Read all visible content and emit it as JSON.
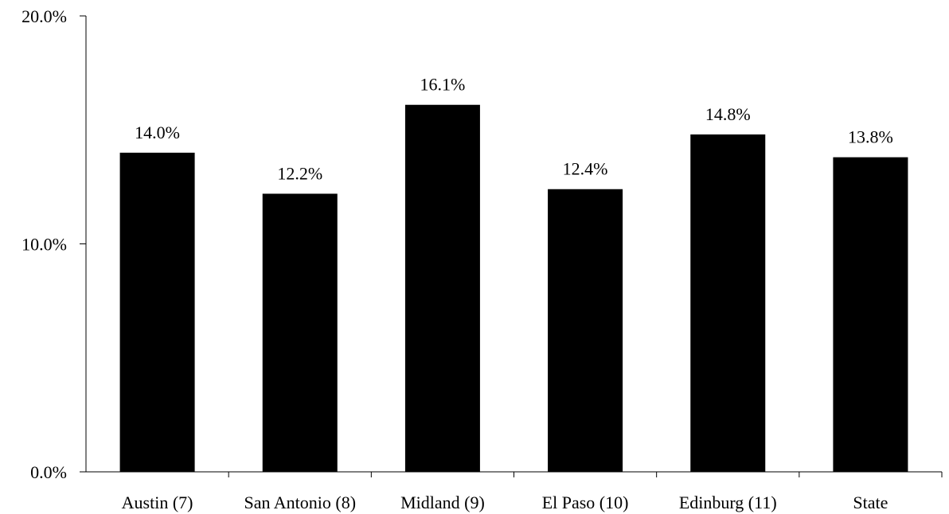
{
  "chart_data": {
    "type": "bar",
    "categories": [
      "Austin (7)",
      "San Antonio (8)",
      "Midland (9)",
      "El Paso (10)",
      "Edinburg (11)",
      "State"
    ],
    "values": [
      14.0,
      12.2,
      16.1,
      12.4,
      14.8,
      13.8
    ],
    "data_labels": [
      "14.0%",
      "12.2%",
      "16.1%",
      "12.4%",
      "14.8%",
      "13.8%"
    ],
    "yticks": [
      0,
      10,
      20
    ],
    "ytick_labels": [
      "0.0%",
      "10.0%",
      "20.0%"
    ],
    "ylim": [
      0,
      20
    ],
    "grid": false,
    "legend": "none",
    "bar_color": "#000000",
    "title": "",
    "xlabel": "",
    "ylabel": ""
  }
}
